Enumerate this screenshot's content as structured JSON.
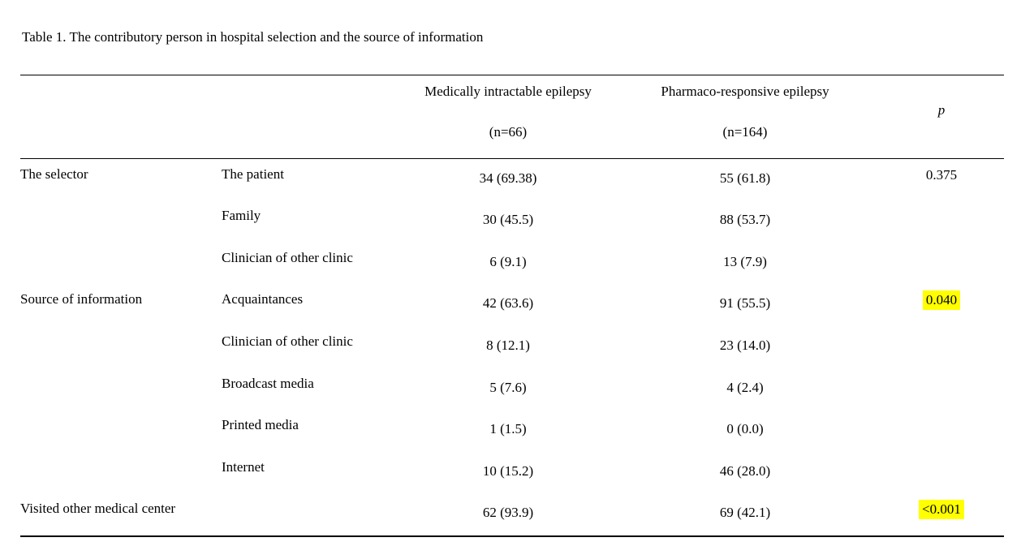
{
  "page": {
    "title": "Table 1. The contributory person in hospital selection and the source of information"
  },
  "table": {
    "headers": {
      "group1_line1": "Medically intractable epilepsy",
      "group1_line2": "(n=66)",
      "group2_line1": "Pharmaco-responsive epilepsy",
      "group2_line2": "(n=164)",
      "p_label": "p"
    },
    "highlight_color": "#ffff00",
    "rows": [
      {
        "category": "The selector",
        "item": "The patient",
        "intractable": "34 (69.38)",
        "responsive": "55 (61.8)",
        "p": "0.375",
        "p_highlight": false
      },
      {
        "category": "",
        "item": "Family",
        "intractable": "30 (45.5)",
        "responsive": "88 (53.7)",
        "p": "",
        "p_highlight": false
      },
      {
        "category": "",
        "item": "Clinician of other clinic",
        "intractable": "6 (9.1)",
        "responsive": "13 (7.9)",
        "p": "",
        "p_highlight": false
      },
      {
        "category": "Source of information",
        "item": "Acquaintances",
        "intractable": "42 (63.6)",
        "responsive": "91 (55.5)",
        "p": "0.040",
        "p_highlight": true
      },
      {
        "category": "",
        "item": "Clinician of other clinic",
        "intractable": "8 (12.1)",
        "responsive": "23 (14.0)",
        "p": "",
        "p_highlight": false
      },
      {
        "category": "",
        "item": "Broadcast media",
        "intractable": "5 (7.6)",
        "responsive": "4 (2.4)",
        "p": "",
        "p_highlight": false
      },
      {
        "category": "",
        "item": "Printed media",
        "intractable": "1 (1.5)",
        "responsive": "0 (0.0)",
        "p": "",
        "p_highlight": false
      },
      {
        "category": "",
        "item": "Internet",
        "intractable": "10 (15.2)",
        "responsive": "46 (28.0)",
        "p": "",
        "p_highlight": false
      },
      {
        "category": "Visited other medical center",
        "item": "",
        "intractable": "62 (93.9)",
        "responsive": "69 (42.1)",
        "p": "<0.001",
        "p_highlight": true
      }
    ]
  }
}
